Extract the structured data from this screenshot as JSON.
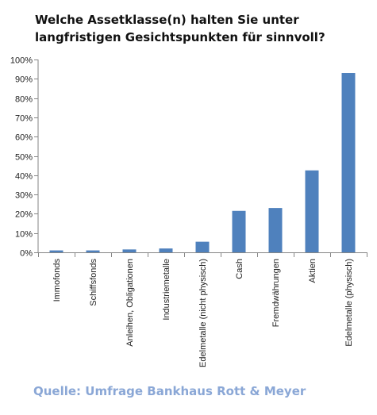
{
  "chart_data": {
    "type": "bar",
    "title": "Welche Assetklasse(n) halten Sie unter langfristigen Gesichtspunkten für sinnvoll?",
    "categories": [
      "Immofonds",
      "Schiffsfonds",
      "Anleihen, Obligationen",
      "Industriemetalle",
      "Edelmetalle (nicht physisch)",
      "Cash",
      "Fremdwährungen",
      "Aktien",
      "Edelmetalle (physisch)"
    ],
    "values": [
      0.01,
      0.01,
      0.015,
      0.02,
      0.055,
      0.215,
      0.23,
      0.425,
      0.93
    ],
    "ylim": [
      0,
      1
    ],
    "yticks": [
      "0%",
      "10%",
      "20%",
      "30%",
      "40%",
      "50%",
      "60%",
      "70%",
      "80%",
      "90%",
      "100%"
    ],
    "xlabel": "",
    "ylabel": "",
    "grid": false,
    "bar_color": "#4f81bd",
    "axis_color": "#868686"
  },
  "source": "Quelle: Umfrage Bankhaus Rott & Meyer"
}
